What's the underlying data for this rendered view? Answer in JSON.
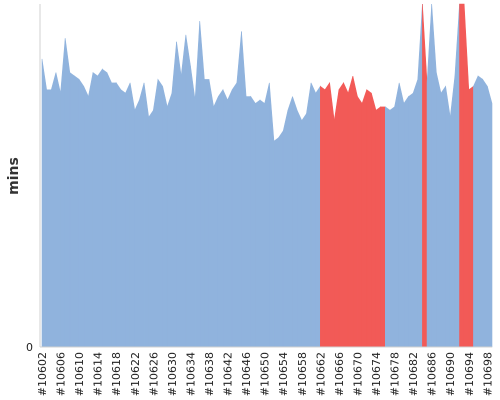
{
  "chart_data": {
    "type": "area",
    "title": "",
    "xlabel": "",
    "ylabel": "mins",
    "y_ticks": [
      "0"
    ],
    "ylim": [
      0,
      100
    ],
    "grid": false,
    "colors": {
      "normal": "#90b3dd",
      "highlight": "#f25a57"
    },
    "x_tick_labels": [
      "#10602",
      "#10606",
      "#10610",
      "#10614",
      "#10618",
      "#10622",
      "#10626",
      "#10630",
      "#10634",
      "#10638",
      "#10642",
      "#10646",
      "#10650",
      "#10654",
      "#10658",
      "#10662",
      "#10666",
      "#10670",
      "#10674",
      "#10678",
      "#10682",
      "#10686",
      "#10690",
      "#10694",
      "#10698"
    ],
    "x": [
      10602,
      10603,
      10604,
      10605,
      10606,
      10607,
      10608,
      10609,
      10610,
      10611,
      10612,
      10613,
      10614,
      10615,
      10616,
      10617,
      10618,
      10619,
      10620,
      10621,
      10622,
      10623,
      10624,
      10625,
      10626,
      10627,
      10628,
      10629,
      10630,
      10631,
      10632,
      10633,
      10634,
      10635,
      10636,
      10637,
      10638,
      10639,
      10640,
      10641,
      10642,
      10643,
      10644,
      10645,
      10646,
      10647,
      10648,
      10649,
      10650,
      10651,
      10652,
      10653,
      10654,
      10655,
      10656,
      10657,
      10658,
      10659,
      10660,
      10661,
      10662,
      10663,
      10664,
      10665,
      10666,
      10667,
      10668,
      10669,
      10670,
      10671,
      10672,
      10673,
      10674,
      10675,
      10676,
      10677,
      10678,
      10679,
      10680,
      10681,
      10682,
      10683,
      10684,
      10685,
      10686,
      10687,
      10688,
      10689,
      10690,
      10691,
      10692,
      10693,
      10694,
      10695,
      10696,
      10697,
      10698,
      10699
    ],
    "values": [
      84,
      75,
      75,
      80,
      74,
      90,
      80,
      79,
      78,
      76,
      73,
      80,
      79,
      81,
      80,
      77,
      77,
      75,
      74,
      77,
      69,
      72,
      77,
      67,
      69,
      78,
      76,
      70,
      74,
      89,
      79,
      91,
      82,
      72,
      95,
      78,
      78,
      70,
      73,
      75,
      72,
      75,
      77,
      92,
      73,
      73,
      71,
      72,
      71,
      77,
      60,
      61,
      63,
      69,
      73,
      69,
      66,
      68,
      77,
      74,
      76,
      75,
      77,
      66,
      75,
      77,
      74,
      79,
      73,
      71,
      75,
      74,
      69,
      70,
      70,
      69,
      70,
      77,
      71,
      73,
      74,
      78,
      100,
      77,
      100,
      80,
      74,
      76,
      67,
      79,
      100,
      100,
      75,
      76,
      79,
      78,
      76,
      71
    ],
    "highlight": [
      false,
      false,
      false,
      false,
      false,
      false,
      false,
      false,
      false,
      false,
      false,
      false,
      false,
      false,
      false,
      false,
      false,
      false,
      false,
      false,
      false,
      false,
      false,
      false,
      false,
      false,
      false,
      false,
      false,
      false,
      false,
      false,
      false,
      false,
      false,
      false,
      false,
      false,
      false,
      false,
      false,
      false,
      false,
      false,
      false,
      false,
      false,
      false,
      false,
      false,
      false,
      false,
      false,
      false,
      false,
      false,
      false,
      false,
      false,
      false,
      true,
      true,
      true,
      true,
      true,
      true,
      true,
      true,
      true,
      true,
      true,
      true,
      true,
      true,
      false,
      false,
      false,
      false,
      false,
      false,
      false,
      false,
      true,
      false,
      false,
      false,
      false,
      false,
      false,
      false,
      true,
      true,
      true,
      false,
      false,
      false,
      false,
      false
    ]
  }
}
